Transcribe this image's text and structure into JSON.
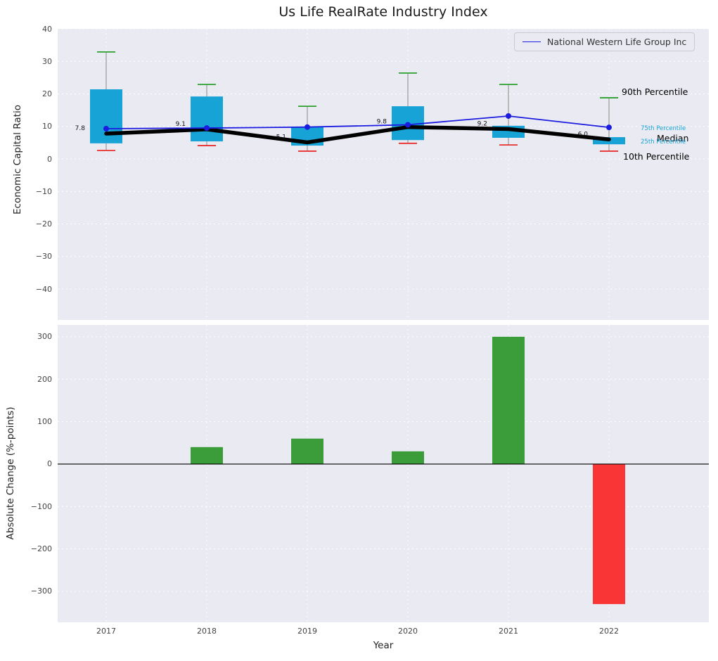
{
  "chart_data": [
    {
      "type": "boxplot",
      "title": "Us Life RealRate Industry Index",
      "ylabel": "Economic Capital Ratio",
      "ylim": [
        -49.5,
        40
      ],
      "yticks": [
        40,
        30,
        20,
        10,
        0,
        -10,
        -20,
        -30,
        -40
      ],
      "categories": [
        "2017",
        "2018",
        "2019",
        "2020",
        "2021",
        "2022"
      ],
      "percentiles": {
        "p10": [
          2.6,
          4.1,
          2.4,
          4.8,
          4.3,
          2.4
        ],
        "p25": [
          4.8,
          5.4,
          4.1,
          5.8,
          6.5,
          4.5
        ],
        "median": [
          7.8,
          9.1,
          5.1,
          9.8,
          9.2,
          6.0
        ],
        "p75": [
          21.4,
          19.2,
          9.9,
          16.2,
          10.2,
          6.7
        ],
        "p90": [
          32.9,
          22.9,
          16.2,
          26.4,
          22.9,
          18.8
        ]
      },
      "median_labels": [
        "7.8",
        "9.1",
        "5.1",
        "9.8",
        "9.2",
        "6.0"
      ],
      "series": [
        {
          "name": "National Western Life Group Inc",
          "color": "#1c1ce0",
          "values": [
            9.3,
            9.5,
            9.8,
            10.5,
            13.2,
            9.7
          ]
        }
      ],
      "annotations": {
        "p90": "90th Percentile",
        "p75": "75th Percentile",
        "median": "Median",
        "p25": "25th Percentile",
        "p10": "10th Percentile"
      },
      "colors": {
        "box": "#17a3d6",
        "median_line": "#000000",
        "cap_top": "#2ca02c",
        "cap_bottom": "#e83030",
        "whisker": "#999999"
      },
      "legend_position": "upper right",
      "grid": true
    },
    {
      "type": "bar",
      "xlabel": "Year",
      "ylabel": "Absolute Change (%-points)",
      "ylim": [
        -373,
        328
      ],
      "yticks": [
        300,
        200,
        100,
        0,
        -100,
        -200,
        -300
      ],
      "categories": [
        "2017",
        "2018",
        "2019",
        "2020",
        "2021",
        "2022"
      ],
      "values": [
        0,
        40,
        60,
        30,
        300,
        -330
      ],
      "colors": {
        "positive": "#3a9d3a",
        "negative": "#f93535"
      },
      "grid": true
    }
  ]
}
